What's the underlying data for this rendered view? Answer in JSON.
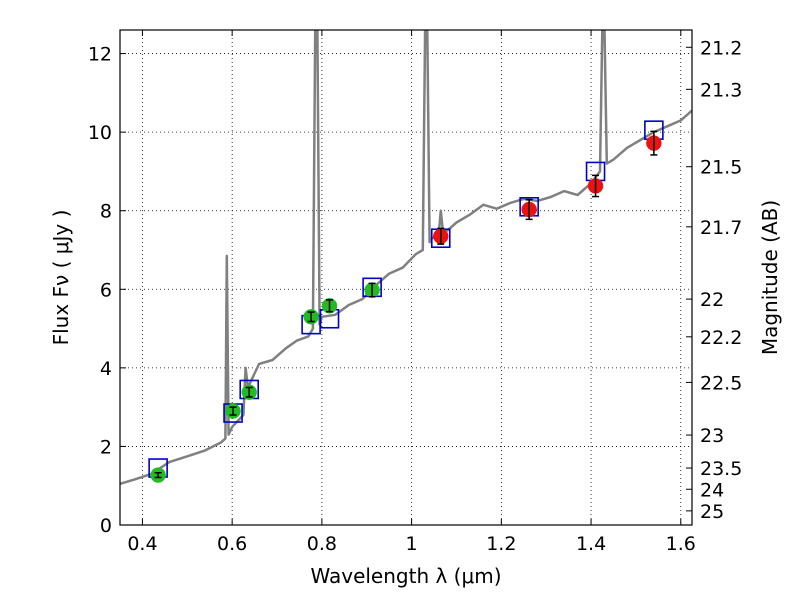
{
  "chart_data": {
    "type": "scatter",
    "xlabel": "Wavelength  λ (μm)",
    "ylabel": "Flux  Fν  ( μJy )",
    "ylabel_right": "Magnitude (AB)",
    "xlim": [
      0.35,
      1.625
    ],
    "ylim": [
      0,
      12.6
    ],
    "grid": true,
    "x_ticks": [
      0.4,
      0.6,
      0.8,
      1.0,
      1.2,
      1.4,
      1.6
    ],
    "x_tick_labels": [
      "0.4",
      "0.6",
      "0.8",
      "1",
      "1.2",
      "1.4",
      "1.6"
    ],
    "y_ticks": [
      0,
      2,
      4,
      6,
      8,
      10,
      12
    ],
    "y_tick_labels": [
      "0",
      "2",
      "4",
      "6",
      "8",
      "10",
      "12"
    ],
    "right_ticks": [
      {
        "label": "21.2",
        "flux": 12.16
      },
      {
        "label": "21.3",
        "flux": 11.09
      },
      {
        "label": "21.5",
        "flux": 9.12
      },
      {
        "label": "21.7",
        "flux": 7.59
      },
      {
        "label": "22",
        "flux": 5.75
      },
      {
        "label": "22.2",
        "flux": 4.79
      },
      {
        "label": "22.5",
        "flux": 3.63
      },
      {
        "label": "23",
        "flux": 2.29
      },
      {
        "label": "23.5",
        "flux": 1.45
      },
      {
        "label": "24",
        "flux": 0.91
      },
      {
        "label": "25",
        "flux": 0.36
      }
    ],
    "series": [
      {
        "color": "#808080",
        "kind": "line",
        "x": [
          0.35,
          0.38,
          0.42,
          0.46,
          0.5,
          0.54,
          0.575,
          0.585,
          0.588,
          0.592,
          0.6,
          0.625,
          0.63,
          0.635,
          0.66,
          0.69,
          0.72,
          0.745,
          0.77,
          0.78,
          0.785,
          0.79,
          0.795,
          0.8,
          0.83,
          0.86,
          0.89,
          0.92,
          0.95,
          0.98,
          1.01,
          1.025,
          1.03,
          1.035,
          1.04,
          1.045,
          1.06,
          1.065,
          1.07,
          1.08,
          1.1,
          1.13,
          1.16,
          1.19,
          1.22,
          1.25,
          1.28,
          1.31,
          1.34,
          1.37,
          1.4,
          1.42,
          1.425,
          1.43,
          1.435,
          1.45,
          1.48,
          1.51,
          1.54,
          1.57,
          1.6,
          1.625
        ],
        "y": [
          1.05,
          1.15,
          1.3,
          1.6,
          1.75,
          1.9,
          2.1,
          2.2,
          6.85,
          2.3,
          2.5,
          2.8,
          4.0,
          3.5,
          4.1,
          4.2,
          4.5,
          4.7,
          4.8,
          5.0,
          12.6,
          12.6,
          5.1,
          5.3,
          5.35,
          5.6,
          5.75,
          6.1,
          6.4,
          6.55,
          6.9,
          7.0,
          12.6,
          12.6,
          7.2,
          7.3,
          7.35,
          8.0,
          7.45,
          7.5,
          7.7,
          7.9,
          8.15,
          8.05,
          8.2,
          8.3,
          8.25,
          8.35,
          8.5,
          8.4,
          8.7,
          9.0,
          12.6,
          12.6,
          9.2,
          9.3,
          9.6,
          9.8,
          10.0,
          10.15,
          10.3,
          10.55
        ]
      },
      {
        "kind": "squares",
        "stroke": "#0000cc",
        "x": [
          0.435,
          0.602,
          0.638,
          0.776,
          0.817,
          0.912,
          1.065,
          1.262,
          1.41,
          1.54
        ],
        "y": [
          1.45,
          2.85,
          3.45,
          5.1,
          5.25,
          6.05,
          7.3,
          8.1,
          9.0,
          10.05
        ]
      },
      {
        "kind": "points",
        "color": "#22bb22",
        "x": [
          0.435,
          0.602,
          0.638,
          0.776,
          0.817,
          0.912
        ],
        "y": [
          1.27,
          2.9,
          3.38,
          5.3,
          5.58,
          5.98
        ],
        "err": [
          0.06,
          0.1,
          0.12,
          0.12,
          0.15,
          0.17
        ]
      },
      {
        "kind": "points",
        "color": "#ee1111",
        "x": [
          1.065,
          1.262,
          1.41,
          1.54
        ],
        "y": [
          7.35,
          8.03,
          8.63,
          9.72
        ],
        "err": [
          0.2,
          0.25,
          0.27,
          0.3
        ]
      }
    ]
  }
}
